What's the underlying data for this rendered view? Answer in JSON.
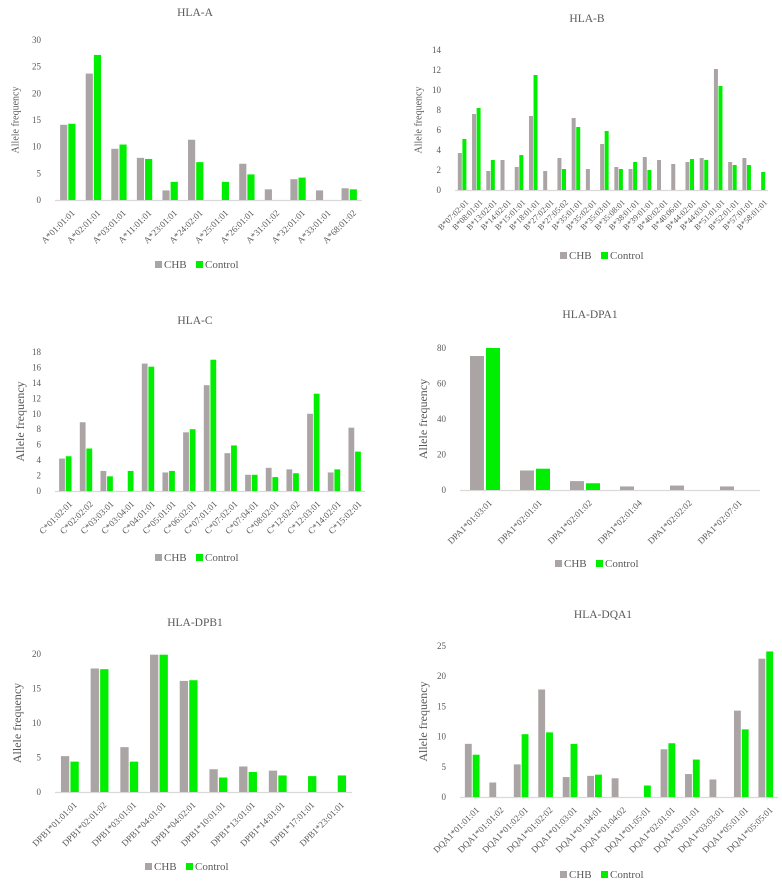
{
  "colors": {
    "CHB": "#aaa4a4",
    "Control": "#00ee00",
    "axis": "#d9d9d9",
    "text": "#595959"
  },
  "chart_data": [
    {
      "type": "bar",
      "title": "HLA-A",
      "ylabel": "Allele frequency",
      "xlabel": "",
      "ylim": [
        0,
        30
      ],
      "yticks": [
        0,
        5,
        10,
        15,
        20,
        25,
        30
      ],
      "grid": false,
      "legend": "bottom",
      "categories": [
        "A*01:01:01",
        "A*02:01:01",
        "A*03:01:01",
        "A*11:01:01",
        "A*23:01:01",
        "A*24:02:01",
        "A*25:01:01",
        "A*26:01:01",
        "A*31:01:02",
        "A*32:01:01",
        "A*33:01:01",
        "A*68:01:02"
      ],
      "series": [
        {
          "name": "CHB",
          "values": [
            14.1,
            23.7,
            9.6,
            7.9,
            1.8,
            11.3,
            0,
            6.8,
            2.0,
            3.9,
            1.8,
            2.2
          ]
        },
        {
          "name": "Control",
          "values": [
            14.3,
            27.2,
            10.4,
            7.7,
            3.4,
            7.1,
            3.4,
            4.8,
            0,
            4.2,
            0,
            2.0
          ]
        }
      ]
    },
    {
      "type": "bar",
      "title": "HLA-B",
      "ylabel": "Allele frequency",
      "xlabel": "",
      "ylim": [
        0,
        14
      ],
      "yticks": [
        0,
        2,
        4,
        6,
        8,
        10,
        12,
        14
      ],
      "grid": false,
      "legend": "bottom",
      "categories": [
        "B*07:02:01",
        "B*08:01:01",
        "B*13:02:01",
        "B*14:02:01",
        "B*15:01:01",
        "B*18:01:01",
        "B*27:02:01",
        "B*27:05:02",
        "B*35:01:01",
        "B*35:02:01",
        "B*35:03:01",
        "B*35:08:01",
        "B*38:01:01",
        "B*39:01:01",
        "B*40:02:01",
        "B*40:06:01",
        "B*44:02:01",
        "B*44:03:01",
        "B*51:01:01",
        "B*52:01:01",
        "B*57:01:01",
        "B*58:01:01"
      ],
      "series": [
        {
          "name": "CHB",
          "values": [
            3.7,
            7.6,
            1.9,
            3.0,
            2.3,
            7.4,
            1.9,
            3.2,
            7.2,
            2.1,
            4.6,
            2.3,
            2.1,
            3.3,
            3.0,
            2.6,
            2.8,
            3.2,
            12.1,
            2.8,
            3.2,
            0
          ]
        },
        {
          "name": "Control",
          "values": [
            5.1,
            8.2,
            3.0,
            0,
            3.5,
            11.5,
            0,
            2.1,
            6.3,
            0,
            5.9,
            2.1,
            2.8,
            2.0,
            0,
            0,
            3.1,
            3.0,
            10.4,
            2.5,
            2.5,
            1.8
          ]
        }
      ]
    },
    {
      "type": "bar",
      "title": "HLA-C",
      "ylabel": "Allele frequency",
      "xlabel": "",
      "ylim": [
        0,
        18
      ],
      "yticks": [
        0,
        2,
        4,
        6,
        8,
        10,
        12,
        14,
        16,
        18
      ],
      "grid": false,
      "legend": "bottom",
      "categories": [
        "C*01:02:01",
        "C*02:02:02",
        "C*03:03:01",
        "C*03:04:01",
        "C*04:01:01",
        "C*05:01:01",
        "C*06:02:01",
        "C*07:01:01",
        "C*07:02:01",
        "C*07:04:01",
        "C*08:02:01",
        "C*12:02:02",
        "C*12:03:01",
        "C*14:02:01",
        "C*15:02:01"
      ],
      "series": [
        {
          "name": "CHB",
          "values": [
            4.2,
            8.9,
            2.6,
            0,
            16.5,
            2.4,
            7.6,
            13.7,
            4.9,
            2.1,
            3.0,
            2.8,
            10.0,
            2.4,
            8.2
          ]
        },
        {
          "name": "Control",
          "values": [
            4.5,
            5.5,
            1.9,
            2.6,
            16.1,
            2.6,
            8.0,
            17.0,
            5.9,
            2.1,
            1.8,
            2.3,
            12.6,
            2.8,
            5.1
          ]
        }
      ]
    },
    {
      "type": "bar",
      "title": "HLA-DPA1",
      "ylabel": "Allele frequency",
      "xlabel": "",
      "ylim": [
        0,
        80
      ],
      "yticks": [
        0,
        20,
        40,
        60,
        80
      ],
      "grid": false,
      "legend": "bottom",
      "categories": [
        "DPA1*01:03:01",
        "DPA1*02:01:01",
        "DPA1*02:01:02",
        "DPA1*02:01:04",
        "DPA1*02:02:02",
        "DPA1*02:07:01"
      ],
      "series": [
        {
          "name": "CHB",
          "values": [
            75.5,
            11.0,
            5.0,
            2.0,
            2.5,
            2.0
          ]
        },
        {
          "name": "Control",
          "values": [
            80.0,
            12.0,
            3.8,
            0,
            0,
            0
          ]
        }
      ]
    },
    {
      "type": "bar",
      "title": "HLA-DPB1",
      "ylabel": "Allele frequency",
      "xlabel": "",
      "ylim": [
        0,
        20
      ],
      "yticks": [
        0,
        5,
        10,
        15,
        20
      ],
      "grid": false,
      "legend": "bottom",
      "categories": [
        "DPB1*01:01:01",
        "DPB1*02:01:02",
        "DPB1*03:01:01",
        "DPB1*04:01:01",
        "DPB1*04:02:01",
        "DPB1*10:01:01",
        "DPB1*13:01:01",
        "DPB1*14:01:01",
        "DPB1*17:01:01",
        "DPB1*23:01:01"
      ],
      "series": [
        {
          "name": "CHB",
          "values": [
            5.2,
            17.9,
            6.5,
            19.9,
            16.1,
            3.3,
            3.7,
            3.1,
            0,
            0
          ]
        },
        {
          "name": "Control",
          "values": [
            4.4,
            17.8,
            4.4,
            19.9,
            16.2,
            2.1,
            2.9,
            2.4,
            2.3,
            2.4
          ]
        }
      ]
    },
    {
      "type": "bar",
      "title": "HLA-DQA1",
      "ylabel": "Allele frequency",
      "xlabel": "",
      "ylim": [
        0,
        25
      ],
      "yticks": [
        0,
        5,
        10,
        15,
        20,
        25
      ],
      "grid": false,
      "legend": "bottom",
      "categories": [
        "DQA1*01:01:01",
        "DQA1*01:01:02",
        "DQA1*01:02:01",
        "DQA1*01:02:02",
        "DQA1*01:03:01",
        "DQA1*01:04:01",
        "DQA1*01:04:02",
        "DQA1*01:05:01",
        "DQA1*02:01:01",
        "DQA1*03:01:01",
        "DQA1*03:03:01",
        "DQA1*05:01:01",
        "DQA1*05:05:01"
      ],
      "series": [
        {
          "name": "CHB",
          "values": [
            8.8,
            2.4,
            5.4,
            17.8,
            3.3,
            3.5,
            3.1,
            0,
            7.9,
            3.8,
            2.9,
            14.3,
            22.9
          ]
        },
        {
          "name": "Control",
          "values": [
            7.0,
            0,
            10.4,
            10.7,
            8.8,
            3.7,
            0,
            1.9,
            8.9,
            6.2,
            0,
            11.2,
            24.1
          ]
        }
      ]
    }
  ]
}
